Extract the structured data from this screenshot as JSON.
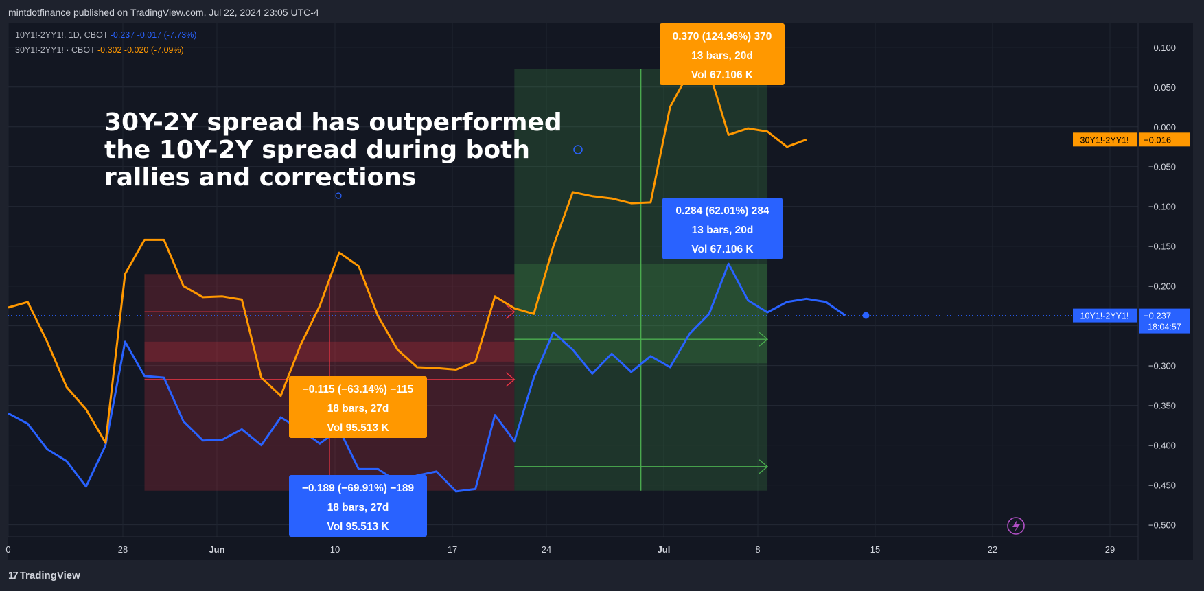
{
  "header": {
    "published": "mintdotfinance published on TradingView.com, Jul 22, 2024 23:05 UTC-4"
  },
  "legend": {
    "s1": {
      "name": "10Y1!-2YY1!, 1D, CBOT",
      "value": "-0.237",
      "change": "-0.017 (-7.73%)"
    },
    "s2": {
      "name": "30Y1!-2YY1! · CBOT",
      "value": "-0.302",
      "change": "-0.020 (-7.09%)"
    }
  },
  "annotation": {
    "lines": [
      "30Y-2Y spread has outperformed",
      "the 10Y-2Y spread during both",
      "rallies and corrections"
    ]
  },
  "footer": {
    "brand": "TradingView"
  },
  "colors": {
    "s1": "#2962ff",
    "s2": "#ff9800",
    "loss": "#f23645",
    "gain": "#4caf50",
    "bg": "#131722",
    "frame": "#1e222d",
    "axis_text": "#d1d4dc"
  },
  "chart_data": {
    "type": "line",
    "x": [
      "May 20",
      "May 21",
      "May 22",
      "May 23",
      "May 24",
      "May 27",
      "May 28",
      "May 29",
      "May 30",
      "May 31",
      "Jun 3",
      "Jun 4",
      "Jun 5",
      "Jun 6",
      "Jun 7",
      "Jun 10",
      "Jun 11",
      "Jun 12",
      "Jun 13",
      "Jun 14",
      "Jun 17",
      "Jun 18",
      "Jun 19",
      "Jun 20",
      "Jun 21",
      "Jun 24",
      "Jun 25",
      "Jun 26",
      "Jun 27",
      "Jun 28",
      "Jul 1",
      "Jul 2",
      "Jul 3",
      "Jul 5",
      "Jul 8",
      "Jul 9",
      "Jul 10",
      "Jul 11",
      "Jul 12",
      "Jul 15",
      "Jul 16",
      "Jul 17",
      "Jul 18",
      "Jul 19",
      "Jul 22"
    ],
    "series": [
      {
        "name": "10Y1!-2YY1!",
        "values": [
          -0.36,
          -0.373,
          -0.405,
          -0.42,
          -0.452,
          -0.4,
          -0.27,
          -0.313,
          -0.315,
          -0.37,
          -0.394,
          -0.393,
          -0.38,
          -0.4,
          -0.365,
          -0.38,
          -0.398,
          -0.38,
          -0.43,
          -0.43,
          -0.446,
          -0.438,
          -0.433,
          -0.458,
          -0.455,
          -0.362,
          -0.395,
          -0.315,
          -0.258,
          -0.28,
          -0.31,
          -0.285,
          -0.308,
          -0.288,
          -0.302,
          -0.26,
          -0.235,
          -0.172,
          -0.218,
          -0.233,
          -0.22,
          -0.216,
          -0.22,
          -0.237,
          null
        ]
      },
      {
        "name": "30Y1!-2YY1!",
        "values": [
          -0.227,
          -0.22,
          -0.27,
          -0.327,
          -0.355,
          -0.397,
          -0.185,
          -0.142,
          -0.142,
          -0.2,
          -0.214,
          -0.213,
          -0.217,
          -0.315,
          -0.338,
          -0.275,
          -0.225,
          -0.158,
          -0.175,
          -0.238,
          -0.28,
          -0.302,
          -0.303,
          -0.305,
          -0.295,
          -0.213,
          -0.228,
          -0.235,
          -0.15,
          -0.082,
          -0.087,
          -0.09,
          -0.096,
          -0.095,
          0.025,
          0.07,
          0.07,
          -0.01,
          -0.002,
          -0.006,
          -0.025,
          -0.016,
          null,
          null,
          null
        ]
      }
    ],
    "x_ticks": [
      "0",
      "28",
      "Jun",
      "10",
      "17",
      "24",
      "Jul",
      "8",
      "15",
      "22",
      "29"
    ],
    "y_ticks": [
      "0.100",
      "0.050",
      "0.000",
      "-0.050",
      "-0.100",
      "-0.150",
      "-0.200",
      "-0.250",
      "-0.300",
      "-0.350",
      "-0.400",
      "-0.450",
      "-0.500"
    ],
    "ylim": [
      -0.515,
      0.13
    ],
    "last_labels": [
      {
        "series": "30Y1!-2YY1!",
        "label": "30Y1!-2YY1!",
        "value": "-0.016",
        "y": -0.016
      },
      {
        "series": "10Y1!-2YY1!",
        "label": "10Y1!-2YY1!",
        "value": "-0.237",
        "timer": "18:04:57",
        "y": -0.237
      }
    ],
    "ranges": [
      {
        "kind": "loss",
        "series": "30Y1!-2YY1!",
        "x0": "May 29",
        "x1": "Jun 25",
        "y0": -0.185,
        "y1": -0.295,
        "text": [
          "-0.115 (-63.14%) -115",
          "18 bars, 27d",
          "Vol 95.513 K"
        ]
      },
      {
        "kind": "loss",
        "series": "10Y1!-2YY1!",
        "x0": "May 29",
        "x1": "Jun 25",
        "y0": -0.27,
        "y1": -0.457,
        "text": [
          "-0.189 (-69.91%) -189",
          "18 bars, 27d",
          "Vol 95.513 K"
        ]
      },
      {
        "kind": "gain",
        "series": "30Y1!-2YY1!",
        "x0": "Jun 25",
        "x1": "Jul 15",
        "y0": -0.297,
        "y1": 0.073,
        "text": [
          "0.370 (124.96%) 370",
          "13 bars, 20d",
          "Vol 67.106 K"
        ]
      },
      {
        "kind": "gain",
        "series": "10Y1!-2YY1!",
        "x0": "Jun 25",
        "x1": "Jul 15",
        "y0": -0.457,
        "y1": -0.172,
        "text": [
          "0.284 (62.01%) 284",
          "13 bars, 20d",
          "Vol 67.106 K"
        ]
      }
    ]
  }
}
